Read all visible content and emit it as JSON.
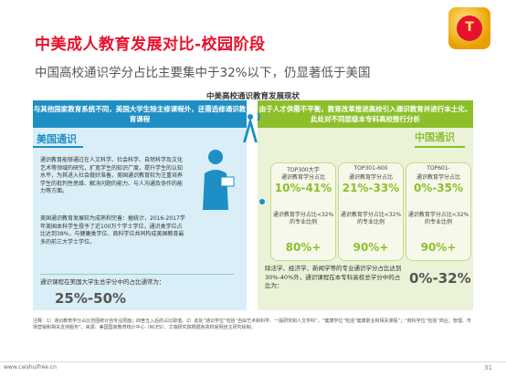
{
  "title": "中美成人教育发展对比-校园阶段",
  "subtitle": "中国高校通识学分占比主要集中于32%以下，仍显著低于美国",
  "center_label": "中美高校通识教育发展现状",
  "left": {
    "header": "与其他国家教育系统不同，美国大学生除主修课程外，还需选修通识教育课程",
    "tag": "美国通识",
    "p1": "通识教育能够通过在人文科学、社会科学、自然科学及文化艺术等领域的研究，扩宽学生的知识广度，提升学生的认知水平，为其进入社会做好准备。美国通识教育较为注重培养学生的批判性思维、解决问题的能力、与人沟通及协作的能力等方面。",
    "p2": "美国通识教育发展较为成熟和完善：据统计，2016-2017学年美国本科学生授予了近100万个学士学位，通识类学位占比达到38%，与健康类学位、商科学位共同构成美国教育最多的前三大学士学位。",
    "foot_label": "通识课程在美国大学生总学分中的占比通常为：",
    "foot_value": "25%-50%"
  },
  "right": {
    "header": "由于人才供需不平衡，教育改革推进高校引入通识教育并进行本土化，此处对不同层级本专科高校推行分析",
    "tag": "中国通识",
    "cards": [
      {
        "h": "TOP300大学",
        "s1": "通识教育学分占比",
        "v1": "10%-41%",
        "s2": "通识教育学分占比<32%的专业比例",
        "v2": "80%+"
      },
      {
        "h": "TOP301-600",
        "s1": "通识教育学分占比",
        "v1": "21%-33%",
        "s2": "通识教育学分占比<32%的专业比例",
        "v2": "90%+"
      },
      {
        "h": "TOP601-",
        "s1": "通识教育学分占比",
        "v1": "0%-35%",
        "s2": "通识教育学分占比<32%的专业比例",
        "v2": "90%+"
      }
    ],
    "bottom_label": "除法学、经济学、新闻学等的专业通识学分占比达到30%-40%外，通识课程在本专科高校总学分中的占比为：",
    "bottom_value": "0%-32%"
  },
  "note": "注释：1）通识教育学分占比范围统计自专业层面；四舍五入后的占比取值。2）此处“通识学位”包括“自由艺术和科学、一般研究和人文学科”，“健康学位”包括“健康职业和相关课程”；“商科学位”包括“商业、管理、市场营销和相关支持服务”。来源：美国国家教育统计中心（NCES）、艾瑞研究院根据各高校官网自主研究绘制。",
  "footer": {
    "url": "www.caishuifree.cn",
    "page": "31"
  },
  "colors": {
    "accent_red": "#e8112d",
    "us_blue": "#1e8fc5",
    "cn_green": "#8cbf2a"
  }
}
